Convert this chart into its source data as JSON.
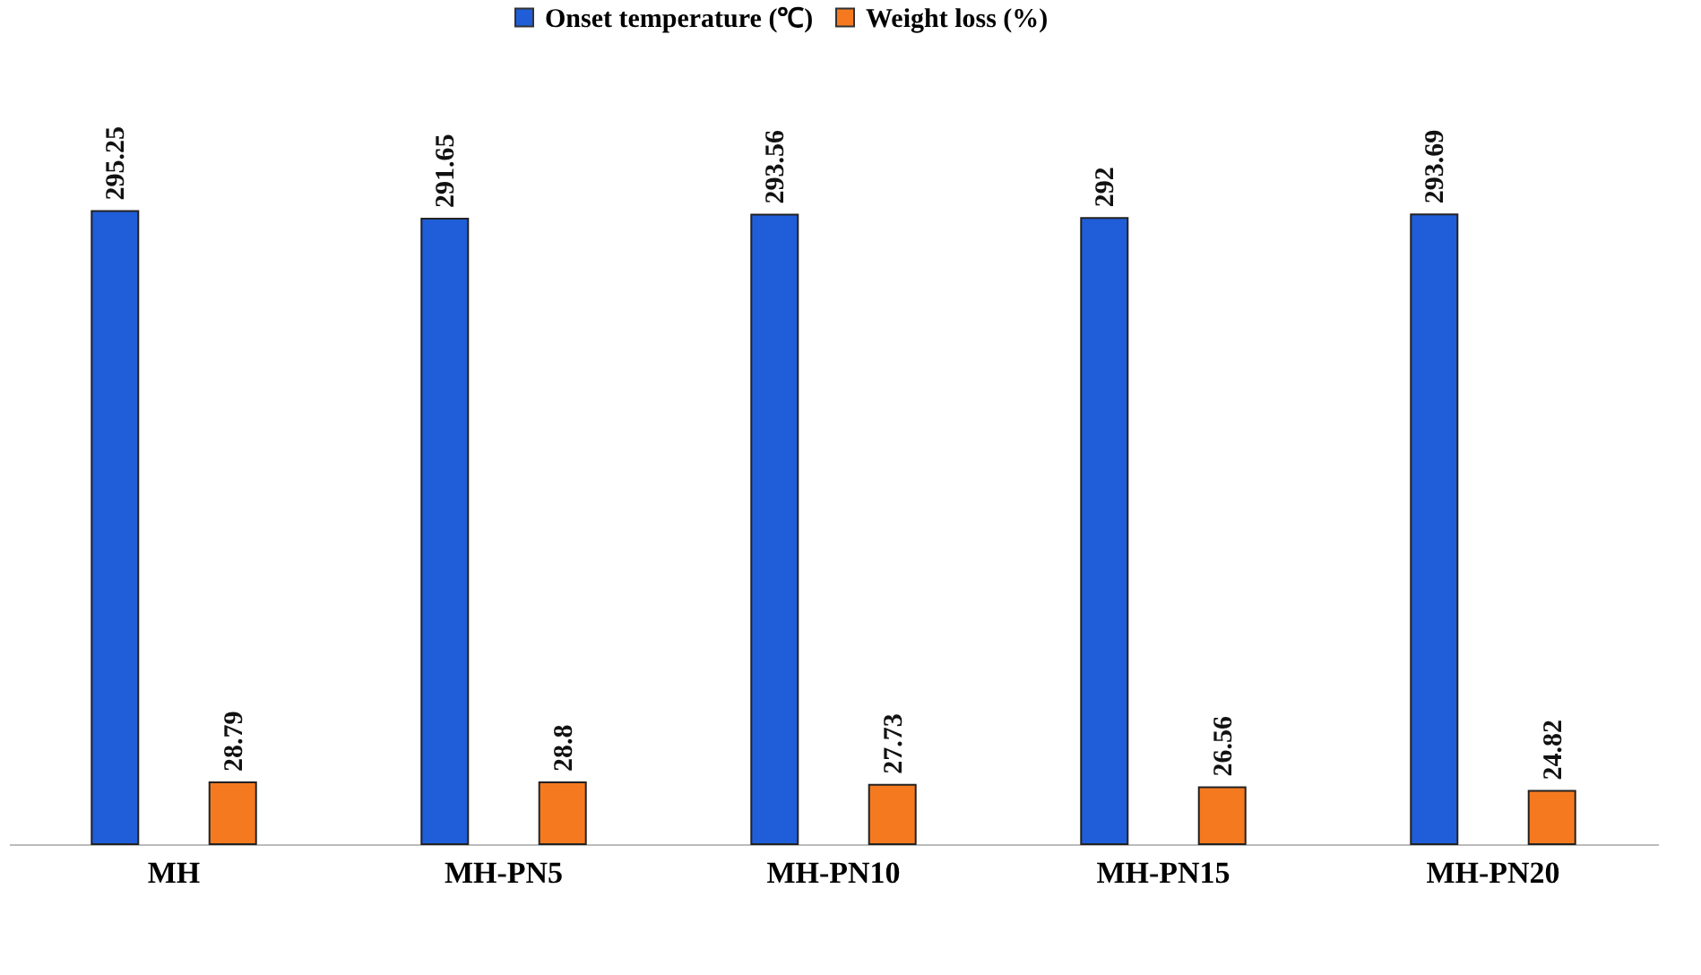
{
  "chart_data": {
    "type": "bar",
    "categories": [
      "MH",
      "MH-PN5",
      "MH-PN10",
      "MH-PN15",
      "MH-PN20"
    ],
    "series": [
      {
        "name": "Onset temperature (℃)",
        "color": "#1f5ed8",
        "values": [
          295.25,
          291.65,
          293.56,
          292,
          293.69
        ]
      },
      {
        "name": "Weight loss (%)",
        "color": "#f57a1f",
        "values": [
          28.79,
          28.8,
          27.73,
          26.56,
          24.82
        ]
      }
    ],
    "data_labels": true,
    "legend": "top",
    "grid": false
  }
}
